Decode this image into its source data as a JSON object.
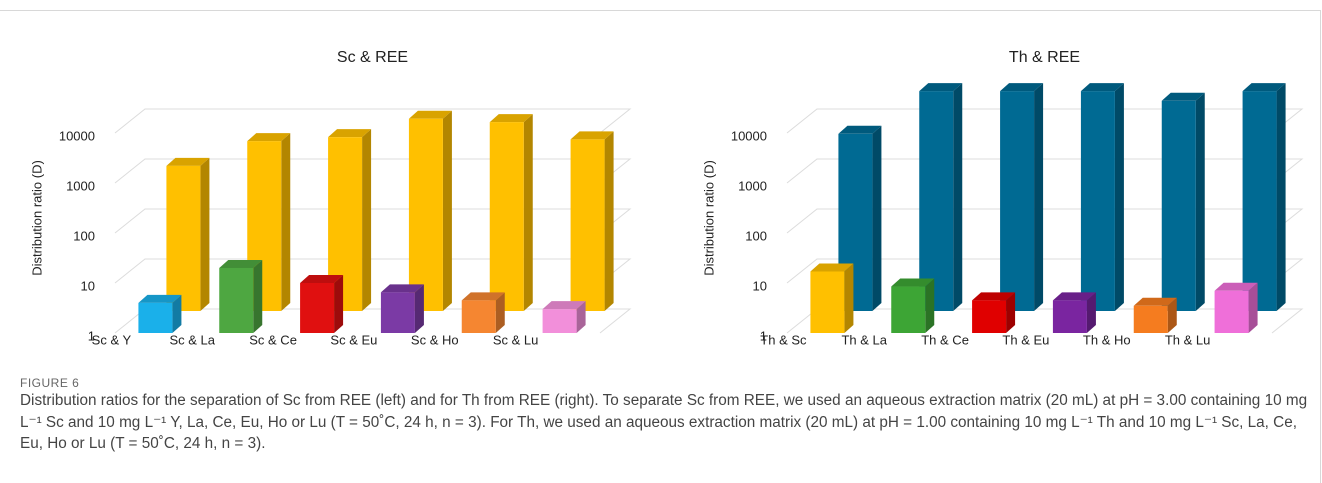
{
  "chart_data": [
    {
      "type": "bar3d",
      "title": "Sc & REE",
      "y_label": "Distribution ratio (D)",
      "log_scale": true,
      "grid": true,
      "categories": [
        "Sc & Y",
        "Sc & La",
        "Sc & Ce",
        "Sc & Eu",
        "Sc & Ho",
        "Sc & Lu"
      ],
      "series": [
        {
          "colors": [
            "#1ab0ea",
            "#4ea741",
            "#e01010",
            "#7b3aa5",
            "#f58631",
            "#f28fda"
          ],
          "values": [
            4,
            20,
            10,
            6.5,
            4.5,
            3
          ]
        },
        {
          "color": "#ffc000",
          "values": [
            800,
            2500,
            3000,
            7000,
            6000,
            2700
          ]
        }
      ],
      "ylim": [
        1,
        100000
      ],
      "yticks": [
        1,
        10,
        100,
        1000,
        10000
      ]
    },
    {
      "type": "bar3d",
      "title": "Th & REE",
      "y_label": "Distribution ratio (D)",
      "log_scale": true,
      "grid": true,
      "categories": [
        "Th & Sc",
        "Th & La",
        "Th & Ce",
        "Th & Eu",
        "Th & Ho",
        "Th & Lu"
      ],
      "series": [
        {
          "colors": [
            "#ffc000",
            "#3da535",
            "#e00000",
            "#7a25a0",
            "#f57c1f",
            "#ef6fd9"
          ],
          "values": [
            17,
            8.5,
            4.5,
            4.5,
            3.5,
            7
          ]
        },
        {
          "color": "#006a93",
          "values": [
            3500,
            25000,
            25000,
            25000,
            16000,
            25000
          ]
        }
      ],
      "ylim": [
        1,
        100000
      ],
      "yticks": [
        1,
        10,
        100,
        1000,
        10000
      ]
    }
  ],
  "caption": {
    "label": "FIGURE 6",
    "text": "Distribution ratios for the separation of Sc from REE (left) and for Th from REE (right). To separate Sc from REE, we used an aqueous extraction matrix (20 mL) at pH = 3.00 containing 10 mg L⁻¹ Sc and 10 mg L⁻¹ Y, La, Ce, Eu, Ho or Lu (T = 50˚C, 24 h, n = 3). For Th, we used an aqueous extraction matrix (20 mL) at pH = 1.00 containing 10 mg L⁻¹ Th and 10 mg L⁻¹ Sc, La, Ce, Eu, Ho or Lu (T = 50˚C, 24 h, n = 3)."
  }
}
